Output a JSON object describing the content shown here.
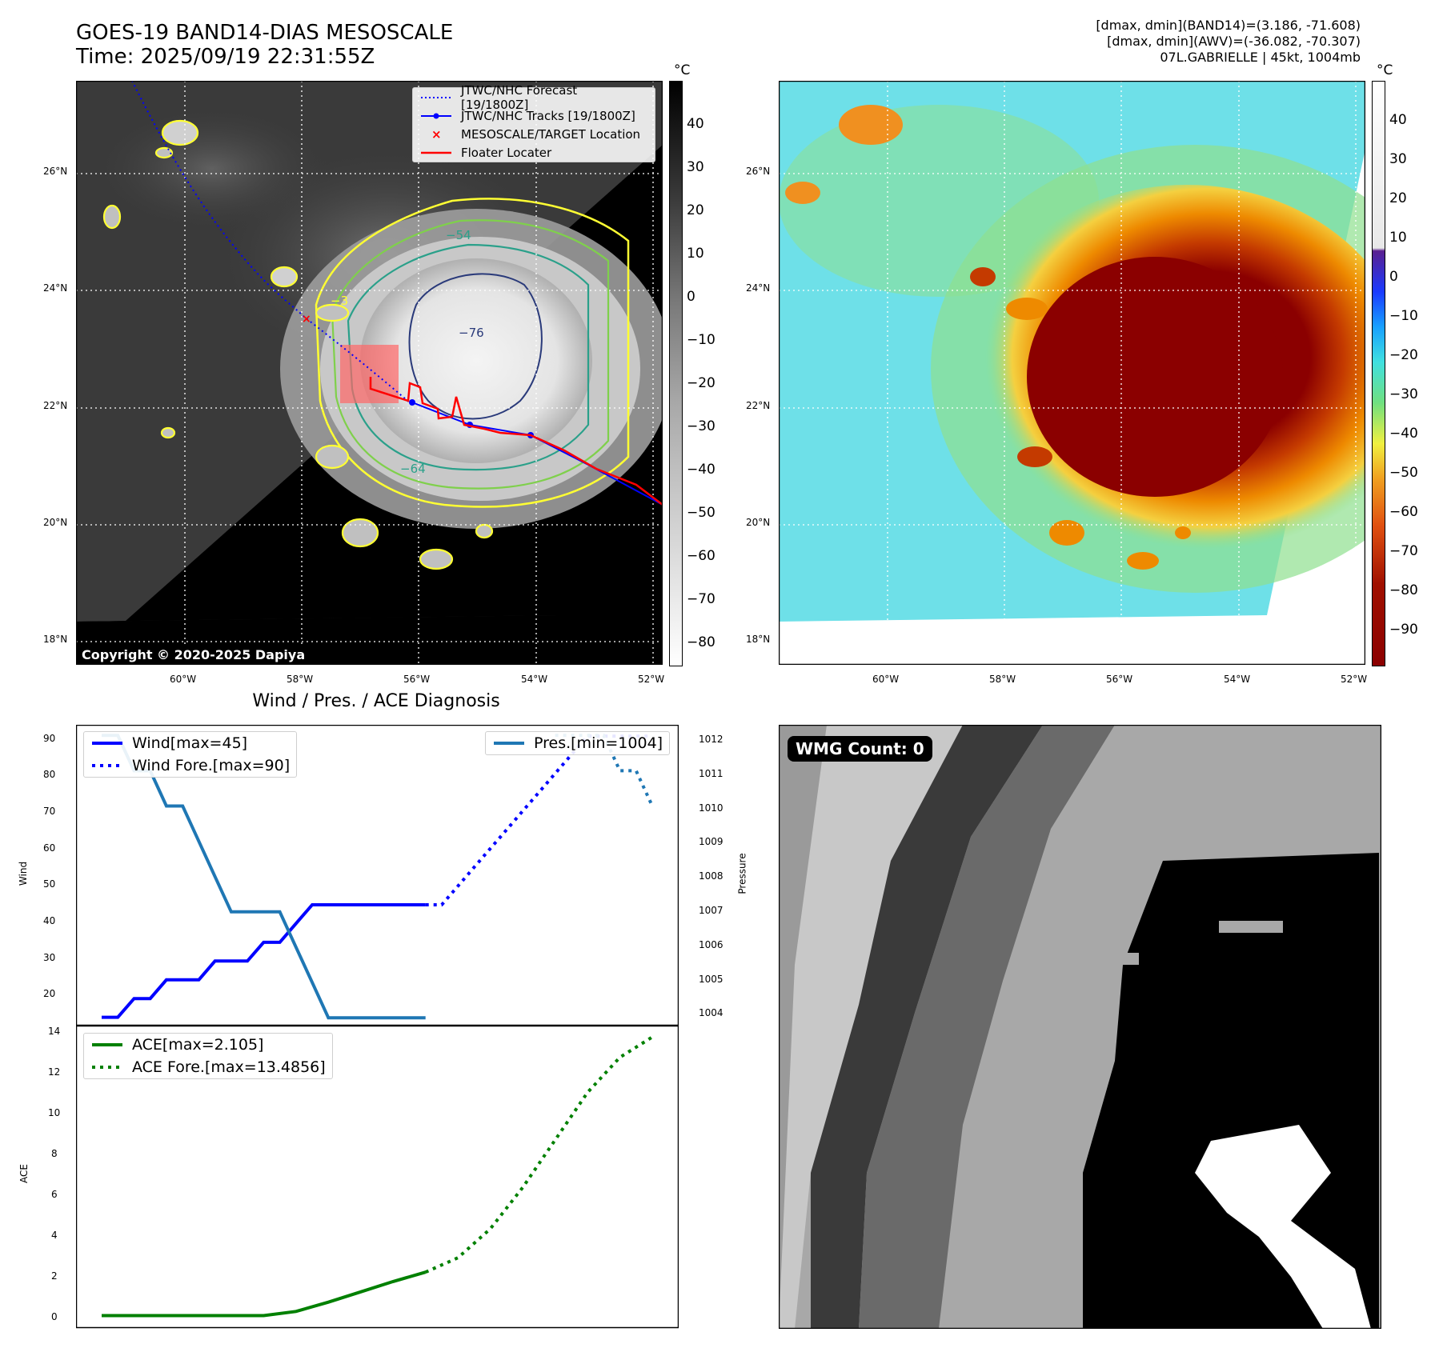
{
  "header": {
    "title_line1": "GOES-19 BAND14-DIAS MESOSCALE",
    "title_line2": "Time: 2025/09/19 22:31:55Z",
    "stats_line1": "[dmax, dmin](BAND14)=(3.186, -71.608)",
    "stats_line2": "[dmax, dmin](AWV)=(-36.082, -70.307)",
    "stats_line3": "07L.GABRIELLE | 45kt, 1004mb"
  },
  "map": {
    "lat_ticks": [
      "26°N",
      "24°N",
      "22°N",
      "20°N",
      "18°N"
    ],
    "lon_ticks": [
      "60°W",
      "58°W",
      "56°W",
      "54°W",
      "52°W"
    ],
    "copyright": "Copyright © 2020-2025 Dapiya",
    "contour_labels": [
      "−54",
      "−76",
      "−64",
      "−3"
    ],
    "legend": [
      {
        "label": "JTWC/NHC Forecast [19/1800Z]",
        "color": "#0000ff",
        "style": "dotted"
      },
      {
        "label": "JTWC/NHC Tracks [19/1800Z]",
        "color": "#0000ff",
        "style": "solid-dot"
      },
      {
        "label": "MESOSCALE/TARGET Location",
        "color": "#ff0000",
        "style": "x"
      },
      {
        "label": "Floater Locater",
        "color": "#ff0000",
        "style": "solid"
      }
    ]
  },
  "colorbar_gray": {
    "unit": "°C",
    "ticks": [
      "40",
      "30",
      "20",
      "10",
      "0",
      "−10",
      "−20",
      "−30",
      "−40",
      "−50",
      "−60",
      "−70",
      "−80"
    ]
  },
  "colorbar_color": {
    "unit": "°C",
    "ticks": [
      "40",
      "30",
      "20",
      "10",
      "0",
      "−10",
      "−20",
      "−30",
      "−40",
      "−50",
      "−60",
      "−70",
      "−80",
      "−90"
    ]
  },
  "wmg": {
    "label": "WMG Count: 0"
  },
  "diagnosis": {
    "title": "Wind / Pres. / ACE Diagnosis",
    "wind_ylabel": "Wind",
    "pres_ylabel": "Pressure",
    "ace_ylabel": "ACE",
    "wind_ticks": [
      "90",
      "80",
      "70",
      "60",
      "50",
      "40",
      "30",
      "20"
    ],
    "pres_ticks": [
      "1012",
      "1011",
      "1010",
      "1009",
      "1008",
      "1007",
      "1006",
      "1005",
      "1004"
    ],
    "ace_ticks": [
      "14",
      "12",
      "10",
      "8",
      "6",
      "4",
      "2",
      "0"
    ],
    "legend_wind": "Wind[max=45]",
    "legend_wind_fore": "Wind Fore.[max=90]",
    "legend_pres": "Pres.[min=1004]",
    "legend_ace": "ACE[max=2.105]",
    "legend_ace_fore": "ACE Fore.[max=13.4856]"
  },
  "chart_data": [
    {
      "type": "line",
      "title": "Wind / Pres. / ACE Diagnosis",
      "ylabel": "Wind",
      "ylim": [
        13,
        93
      ],
      "x": [
        0,
        1,
        2,
        3,
        4,
        5,
        6,
        7,
        8,
        9,
        10,
        11,
        12,
        13,
        14,
        15,
        16,
        17,
        18,
        19,
        20
      ],
      "series": [
        {
          "name": "Wind[max=45]",
          "color": "#0000ff",
          "style": "solid",
          "x": [
            0,
            1,
            2,
            3,
            4,
            5,
            6,
            7,
            8,
            9,
            10,
            11,
            12,
            13,
            14,
            15,
            16,
            17,
            18,
            19,
            20
          ],
          "values": [
            15,
            15,
            20,
            20,
            25,
            25,
            25,
            30,
            30,
            30,
            35,
            35,
            40,
            45,
            45,
            45,
            45,
            45,
            45,
            45,
            45
          ]
        },
        {
          "name": "Wind Fore.[max=90]",
          "color": "#0000ff",
          "style": "dotted",
          "x": [
            20,
            21,
            22,
            23,
            24,
            25,
            26,
            27,
            28,
            29,
            30,
            31,
            32,
            33,
            34
          ],
          "values": [
            45,
            45,
            50,
            55,
            60,
            65,
            70,
            75,
            80,
            85,
            90,
            90,
            90,
            90,
            90
          ]
        }
      ]
    },
    {
      "type": "line",
      "ylabel": "Pressure",
      "ylim": [
        1003.8,
        1012.3
      ],
      "series": [
        {
          "name": "Pres.[min=1004]",
          "color": "#1f77b4",
          "style": "solid",
          "x": [
            0,
            1,
            2,
            3,
            4,
            5,
            6,
            7,
            8,
            9,
            10,
            11,
            12,
            13,
            14,
            15,
            16,
            17,
            18,
            19,
            20
          ],
          "values": [
            1012,
            1012,
            1011,
            1011,
            1010,
            1010,
            1009,
            1008,
            1007,
            1007,
            1007,
            1007,
            1006,
            1005,
            1004,
            1004,
            1004,
            1004,
            1004,
            1004,
            1004
          ]
        },
        {
          "name": "Pres.[min=1004] fore",
          "color": "#1f77b4",
          "style": "dotted",
          "x": [
            28,
            29,
            30,
            31,
            32,
            33,
            34
          ],
          "values": [
            1012,
            1012,
            1012,
            1012,
            1011,
            1011,
            1010
          ]
        }
      ]
    },
    {
      "type": "line",
      "ylabel": "ACE",
      "ylim": [
        -0.6,
        14
      ],
      "series": [
        {
          "name": "ACE[max=2.105]",
          "color": "#008000",
          "style": "solid",
          "x": [
            0,
            2,
            4,
            6,
            8,
            10,
            12,
            14,
            16,
            18,
            20
          ],
          "values": [
            0,
            0,
            0,
            0,
            0,
            0,
            0.2,
            0.65,
            1.15,
            1.65,
            2.105
          ]
        },
        {
          "name": "ACE Fore.[max=13.4856]",
          "color": "#008000",
          "style": "dotted",
          "x": [
            20,
            22,
            24,
            26,
            28,
            30,
            32,
            34
          ],
          "values": [
            2.105,
            2.8,
            4.2,
            6.2,
            8.5,
            10.8,
            12.5,
            13.4856
          ]
        }
      ]
    }
  ]
}
